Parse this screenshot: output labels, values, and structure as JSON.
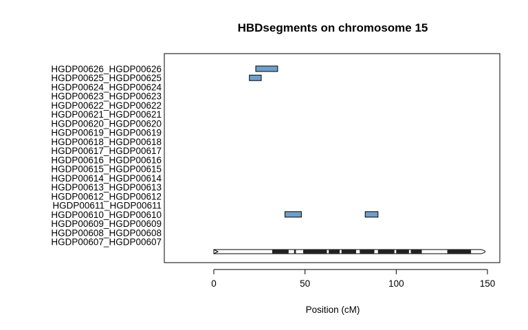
{
  "chart_data": {
    "type": "bar",
    "title": "HBDsegments on chromosome 15",
    "xlabel": "Position (cM)",
    "ylabel": "",
    "xlim": [
      -27,
      158
    ],
    "xticks": [
      0,
      50,
      100,
      150
    ],
    "categories": [
      "HGDP00607_HGDP00607",
      "HGDP00608_HGDP00608",
      "HGDP00609_HGDP00609",
      "HGDP00610_HGDP00610",
      "HGDP00611_HGDP00611",
      "HGDP00612_HGDP00612",
      "HGDP00613_HGDP00613",
      "HGDP00614_HGDP00614",
      "HGDP00615_HGDP00615",
      "HGDP00616_HGDP00616",
      "HGDP00617_HGDP00617",
      "HGDP00618_HGDP00618",
      "HGDP00619_HGDP00619",
      "HGDP00620_HGDP00620",
      "HGDP00621_HGDP00621",
      "HGDP00622_HGDP00622",
      "HGDP00623_HGDP00623",
      "HGDP00624_HGDP00624",
      "HGDP00625_HGDP00625",
      "HGDP00626_HGDP00626"
    ],
    "segments": [
      {
        "sample": "HGDP00626_HGDP00626",
        "start": 23,
        "end": 35
      },
      {
        "sample": "HGDP00625_HGDP00625",
        "start": 19.5,
        "end": 26
      },
      {
        "sample": "HGDP00610_HGDP00610",
        "start": 39,
        "end": 48
      },
      {
        "sample": "HGDP00610_HGDP00610",
        "start": 83,
        "end": 90
      }
    ],
    "segment_color": "#6f9fc9",
    "chromosome": {
      "start": 0,
      "end": 151,
      "bands": [
        {
          "start": 32,
          "end": 41,
          "stain": "dark"
        },
        {
          "start": 44,
          "end": 45,
          "stain": "dark"
        },
        {
          "start": 49,
          "end": 62,
          "stain": "dark"
        },
        {
          "start": 63,
          "end": 69,
          "stain": "dark"
        },
        {
          "start": 70,
          "end": 78,
          "stain": "dark"
        },
        {
          "start": 80,
          "end": 88,
          "stain": "dark"
        },
        {
          "start": 90,
          "end": 99,
          "stain": "dark"
        },
        {
          "start": 100,
          "end": 107,
          "stain": "dark"
        },
        {
          "start": 108,
          "end": 114,
          "stain": "dark"
        },
        {
          "start": 128,
          "end": 141,
          "stain": "dark"
        }
      ]
    }
  }
}
